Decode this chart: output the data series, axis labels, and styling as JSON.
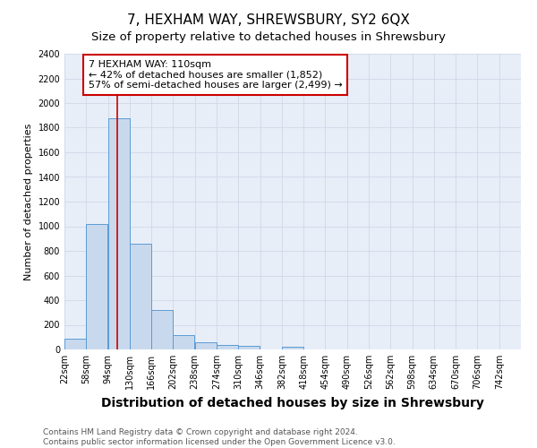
{
  "title": "7, HEXHAM WAY, SHREWSBURY, SY2 6QX",
  "subtitle": "Size of property relative to detached houses in Shrewsbury",
  "xlabel": "Distribution of detached houses by size in Shrewsbury",
  "ylabel": "Number of detached properties",
  "bin_labels": [
    "22sqm",
    "58sqm",
    "94sqm",
    "130sqm",
    "166sqm",
    "202sqm",
    "238sqm",
    "274sqm",
    "310sqm",
    "346sqm",
    "382sqm",
    "418sqm",
    "454sqm",
    "490sqm",
    "526sqm",
    "562sqm",
    "598sqm",
    "634sqm",
    "670sqm",
    "706sqm",
    "742sqm"
  ],
  "bin_edges": [
    22,
    58,
    94,
    130,
    166,
    202,
    238,
    274,
    310,
    346,
    382,
    418,
    454,
    490,
    526,
    562,
    598,
    634,
    670,
    706,
    742
  ],
  "bin_width": 36,
  "bar_values": [
    90,
    1020,
    1880,
    860,
    320,
    120,
    55,
    40,
    30,
    0,
    20,
    0,
    0,
    0,
    0,
    0,
    0,
    0,
    0,
    0,
    0
  ],
  "bar_color": "#c9d9ed",
  "bar_edge_color": "#5b9bd5",
  "red_line_x": 110,
  "ylim": [
    0,
    2400
  ],
  "yticks": [
    0,
    200,
    400,
    600,
    800,
    1000,
    1200,
    1400,
    1600,
    1800,
    2000,
    2200,
    2400
  ],
  "annotation_line1": "7 HEXHAM WAY: 110sqm",
  "annotation_line2": "← 42% of detached houses are smaller (1,852)",
  "annotation_line3": "57% of semi-detached houses are larger (2,499) →",
  "annotation_box_color": "#ffffff",
  "annotation_box_edge_color": "#cc0000",
  "footer_line1": "Contains HM Land Registry data © Crown copyright and database right 2024.",
  "footer_line2": "Contains public sector information licensed under the Open Government Licence v3.0.",
  "grid_color": "#d0d8e8",
  "background_color": "#e8eef8",
  "title_fontsize": 11,
  "subtitle_fontsize": 9.5,
  "xlabel_fontsize": 10,
  "ylabel_fontsize": 8,
  "tick_fontsize": 7,
  "footer_fontsize": 6.5,
  "annotation_fontsize": 8
}
